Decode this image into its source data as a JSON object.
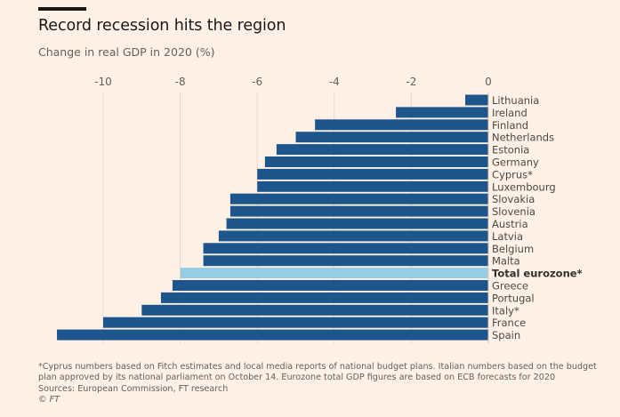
{
  "header": {
    "title": "Record recession hits the region",
    "subtitle": "Change in real GDP in 2020 (%)"
  },
  "chart_data": {
    "type": "bar",
    "orientation": "horizontal",
    "title": "Record recession hits the region",
    "subtitle": "Change in real GDP in 2020 (%)",
    "xlabel": "",
    "ylabel": "",
    "xlim": [
      -11.3,
      0
    ],
    "x_ticks": [
      -10,
      -8,
      -6,
      -4,
      -2,
      0
    ],
    "x_tick_labels": [
      "-10",
      "-8",
      "-6",
      "-4",
      "-2",
      "0"
    ],
    "x_axis_position": "top",
    "grid": true,
    "categories": [
      "Lithuania",
      "Ireland",
      "Finland",
      "Netherlands",
      "Estonia",
      "Germany",
      "Cyprus*",
      "Luxembourg",
      "Slovakia",
      "Slovenia",
      "Austria",
      "Latvia",
      "Belgium",
      "Malta",
      "Total eurozone*",
      "Greece",
      "Portugal",
      "Italy*",
      "France",
      "Spain"
    ],
    "values": [
      -0.6,
      -2.4,
      -4.5,
      -5.0,
      -5.5,
      -5.8,
      -6.0,
      -6.0,
      -6.7,
      -6.7,
      -6.8,
      -7.0,
      -7.4,
      -7.4,
      -8.0,
      -8.2,
      -8.5,
      -9.0,
      -10.0,
      -11.2
    ],
    "highlight": "Total eurozone*",
    "colors": {
      "bar": "#1e558c",
      "highlight": "#96cce4",
      "grid": "#e6d9ce"
    }
  },
  "footer": {
    "notes": [
      "*Cyprus numbers based on Fitch estimates and local media reports of national budget plans. Italian numbers based on the budget",
      "plan approved by its national parliament on October 14. Eurozone total GDP figures are based on ECB forecasts for 2020"
    ],
    "sources": "Sources: European Commission, FT research",
    "copyright": "© FT"
  }
}
